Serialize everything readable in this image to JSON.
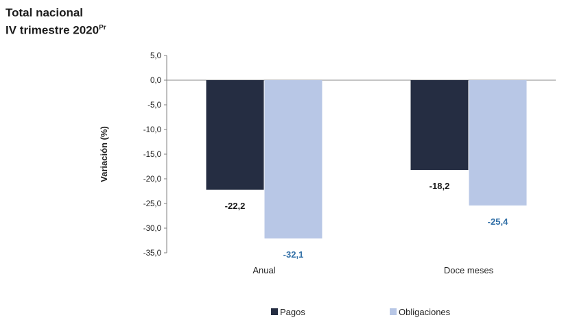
{
  "title_line1": "Total nacional",
  "title_line2": "IV trimestre 2020",
  "title_superscript": "Pr",
  "chart_data": {
    "type": "bar",
    "categories": [
      "Anual",
      "Doce meses"
    ],
    "series": [
      {
        "name": "Pagos",
        "values": [
          -22.2,
          -18.2
        ],
        "color": "#252d42",
        "labels": [
          "-22,2",
          "-18,2"
        ],
        "label_color": "#1a1a1a"
      },
      {
        "name": "Obligaciones",
        "values": [
          -32.1,
          -25.4
        ],
        "color": "#b8c7e6",
        "labels": [
          "-32,1",
          "-25,4"
        ],
        "label_color": "#2f6ea6"
      }
    ],
    "ylabel": "Variación (%)",
    "ylim": [
      -35,
      5
    ],
    "yticks": [
      5,
      0,
      -5,
      -10,
      -15,
      -20,
      -25,
      -30,
      -35
    ],
    "ytick_labels": [
      "5,0",
      "0,0",
      "-5,0",
      "-10,0",
      "-15,0",
      "-20,0",
      "-25,0",
      "-30,0",
      "-35,0"
    ],
    "legend_position": "bottom",
    "grid": false
  }
}
